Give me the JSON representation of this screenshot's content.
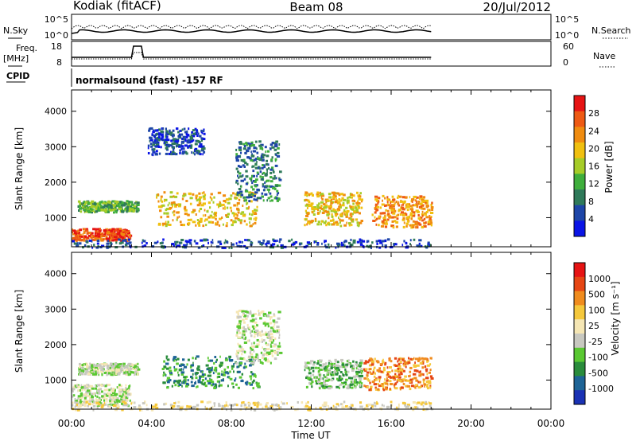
{
  "header": {
    "station": "Kodiak (fitACF)",
    "beam": "Beam 08",
    "date": "20/Jul/2012"
  },
  "top_panels": {
    "nsky_label": "N.Sky",
    "nsky_ticks": [
      "10^5",
      "10^0"
    ],
    "nsearch_label": "N.Search",
    "nsearch_ticks": [
      "10^5",
      "10^0"
    ],
    "freq_label": "Freq.",
    "freq_unit": "[MHz]",
    "freq_ticks": [
      "18",
      "8"
    ],
    "nave_label": "Nave",
    "nave_ticks": [
      "60",
      "0"
    ],
    "cpid_label": "CPID",
    "cpid_text": "normalsound (fast) -157 RF"
  },
  "chart_data": [
    {
      "type": "heatmap",
      "panel": "power",
      "ylabel": "Slant Range [km]",
      "ylim": [
        180,
        4600
      ],
      "yticks": [
        "1000",
        "2000",
        "3000",
        "4000"
      ],
      "xlim_hours": [
        0,
        24
      ],
      "colorbar_label": "Power [dB]",
      "colorbar_ticks": [
        "4",
        "8",
        "12",
        "16",
        "20",
        "24",
        "28"
      ],
      "colors": [
        "#0a14e6",
        "#1e46a8",
        "#2f7a5a",
        "#3fae3c",
        "#a6cc28",
        "#f0c010",
        "#f08c10",
        "#ee5a14",
        "#e61414"
      ],
      "regions": [
        {
          "t": [
            0.0,
            2.9
          ],
          "r": [
            380,
            720
          ],
          "level": 7
        },
        {
          "t": [
            0.3,
            3.3
          ],
          "r": [
            1180,
            1500
          ],
          "level": 3
        },
        {
          "t": [
            4.2,
            9.3
          ],
          "r": [
            800,
            1750
          ],
          "level": 5
        },
        {
          "t": [
            8.2,
            10.4
          ],
          "r": [
            1500,
            3200
          ],
          "level": 2
        },
        {
          "t": [
            11.6,
            14.5
          ],
          "r": [
            800,
            1750
          ],
          "level": 5
        },
        {
          "t": [
            15.0,
            18.0
          ],
          "r": [
            750,
            1650
          ],
          "level": 6
        },
        {
          "t": [
            3.8,
            6.6
          ],
          "r": [
            2800,
            3550
          ],
          "level": 1
        },
        {
          "t": [
            0.0,
            18.0
          ],
          "r": [
            180,
            420
          ],
          "level": 1
        }
      ]
    },
    {
      "type": "heatmap",
      "panel": "velocity",
      "ylabel": "Slant Range [km]",
      "ylim": [
        180,
        4600
      ],
      "yticks": [
        "1000",
        "2000",
        "3000",
        "4000"
      ],
      "xlim_hours": [
        0,
        24
      ],
      "xticks": [
        "00:00",
        "04:00",
        "08:00",
        "12:00",
        "16:00",
        "20:00",
        "00:00"
      ],
      "xlabel": "Time UT",
      "colorbar_label": "Velocity [m s⁻¹]",
      "colorbar_ticks": [
        "1000",
        "500",
        "100",
        "25",
        "-25",
        "-100",
        "-500",
        "-1000"
      ],
      "colors": [
        "#1a32b4",
        "#1e6496",
        "#2a8c3c",
        "#5ac832",
        "#c8c8c0",
        "#f5e6b4",
        "#f5c83c",
        "#f08c1e",
        "#e64614",
        "#e61414"
      ],
      "regions": [
        {
          "t": [
            0.0,
            2.9
          ],
          "r": [
            300,
            900
          ],
          "level": 4
        },
        {
          "t": [
            0.3,
            3.3
          ],
          "r": [
            1180,
            1500
          ],
          "level": 4
        },
        {
          "t": [
            4.5,
            9.3
          ],
          "r": [
            800,
            1700
          ],
          "level": 2
        },
        {
          "t": [
            8.2,
            10.4
          ],
          "r": [
            1500,
            3000
          ],
          "level": 4
        },
        {
          "t": [
            11.6,
            14.5
          ],
          "r": [
            800,
            1600
          ],
          "level": 3
        },
        {
          "t": [
            14.6,
            18.0
          ],
          "r": [
            750,
            1650
          ],
          "level": 7
        },
        {
          "t": [
            0.0,
            18.0
          ],
          "r": [
            180,
            420
          ],
          "level": 5
        }
      ]
    }
  ]
}
